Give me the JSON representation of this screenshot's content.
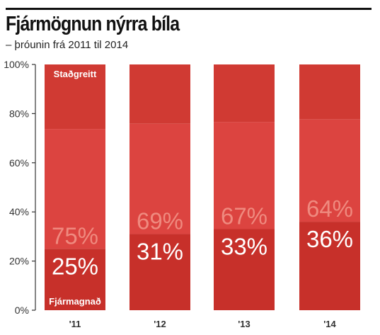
{
  "header": {
    "title": "Fjármögnun nýrra bíla",
    "subtitle": "– þróunin frá 2011 til 2014"
  },
  "colors": {
    "fjarmagnad": "#c7302a",
    "stadgreitt_light": "#dc4440",
    "stadgreitt_dark": "#d03a33",
    "text": "#111111",
    "axis": "#333333"
  },
  "chart_data": {
    "type": "bar",
    "stacked": true,
    "percent": true,
    "categories": [
      "'11",
      "'12",
      "'13",
      "'14"
    ],
    "series": [
      {
        "name": "Fjármagnað",
        "values": [
          25,
          31,
          33,
          36
        ],
        "labels": [
          "25%",
          "31%",
          "33%",
          "36%"
        ]
      },
      {
        "name": "Staðgreitt",
        "values": [
          75,
          69,
          67,
          64
        ],
        "labels": [
          "75%",
          "69%",
          "67%",
          "64%"
        ]
      }
    ],
    "title": "Fjármögnun nýrra bíla",
    "subtitle": "– þróunin frá 2011 til 2014",
    "xlabel": "",
    "ylabel": "",
    "ylim": [
      0,
      100
    ],
    "yticks": [
      0,
      20,
      40,
      60,
      80,
      100
    ],
    "ytick_labels": [
      "0%",
      "20%",
      "40%",
      "60%",
      "80%",
      "100%"
    ],
    "grid": false,
    "legend": "inside first bar (Staðgreitt at top, Fjármagnað at bottom)"
  }
}
